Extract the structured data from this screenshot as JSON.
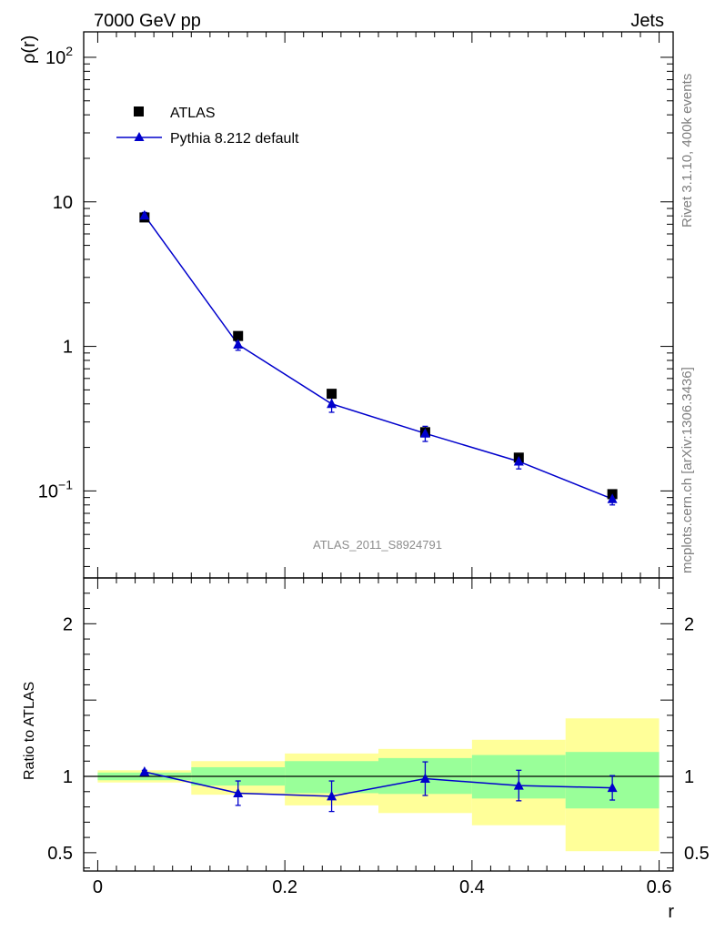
{
  "header": {
    "left_label": "7000 GeV pp",
    "right_label": "Jets",
    "side_label_top": "Rivet 3.1.10,  400k events",
    "side_label_bottom": "mcplots.cern.ch [arXiv:1306.3436]",
    "watermark": "ATLAS_2011_S8924791"
  },
  "legend": {
    "data_label": "ATLAS",
    "mc_label": "Pythia 8.212 default"
  },
  "colors": {
    "mc": "#0000cc",
    "data": "#000000",
    "band_outer": "#ffff99",
    "band_inner": "#99ff99"
  },
  "chart_data": [
    {
      "type": "scatter",
      "panel": "main",
      "ylabel": "ρ(r)",
      "yscale": "log",
      "ylim": [
        0.025,
        150
      ],
      "xlim": [
        -0.015,
        0.615
      ],
      "y_tick_labels": {
        "1e-1": "10",
        "1e-1_exp": "−1",
        "1": "1",
        "10": "10",
        "1e2": "10",
        "1e2_exp": "2"
      },
      "series": [
        {
          "name": "ATLAS",
          "x": [
            0.05,
            0.15,
            0.25,
            0.35,
            0.45,
            0.55
          ],
          "values": [
            7.8,
            1.18,
            0.47,
            0.255,
            0.17,
            0.095
          ],
          "marker": "square"
        },
        {
          "name": "Pythia 8.212 default",
          "x": [
            0.05,
            0.15,
            0.25,
            0.35,
            0.45,
            0.55
          ],
          "values": [
            8.05,
            1.03,
            0.4,
            0.25,
            0.16,
            0.088
          ],
          "err_low": [
            0.4,
            0.09,
            0.05,
            0.03,
            0.018,
            0.008
          ],
          "err_high": [
            0.4,
            0.09,
            0.05,
            0.03,
            0.018,
            0.008
          ],
          "marker": "triangle",
          "line": true
        }
      ]
    },
    {
      "type": "line",
      "panel": "ratio",
      "xlabel": "r",
      "ylabel": "Ratio to ATLAS",
      "xlim": [
        -0.015,
        0.615
      ],
      "ylim": [
        0.38,
        2.3
      ],
      "x_ticks": [
        0,
        0.2,
        0.4,
        0.6
      ],
      "x_tick_labels": [
        "0",
        "0.2",
        "0.4",
        "0.6"
      ],
      "y_ticks": [
        0.5,
        1,
        2
      ],
      "y_tick_labels": [
        "0.5",
        "1",
        "2"
      ],
      "bands": {
        "bins": [
          [
            0,
            0.1
          ],
          [
            0.1,
            0.2
          ],
          [
            0.2,
            0.3
          ],
          [
            0.3,
            0.4
          ],
          [
            0.4,
            0.5
          ],
          [
            0.5,
            0.6
          ]
        ],
        "outer_low": [
          0.96,
          0.88,
          0.81,
          0.76,
          0.68,
          0.51
        ],
        "outer_high": [
          1.04,
          1.1,
          1.15,
          1.18,
          1.24,
          1.38
        ],
        "inner_low": [
          0.975,
          0.94,
          0.89,
          0.885,
          0.855,
          0.79
        ],
        "inner_high": [
          1.025,
          1.06,
          1.1,
          1.12,
          1.14,
          1.16
        ]
      },
      "series": [
        {
          "name": "Pythia 8.212 default",
          "x": [
            0.05,
            0.15,
            0.25,
            0.35,
            0.45,
            0.55
          ],
          "values": [
            1.03,
            0.89,
            0.87,
            0.985,
            0.94,
            0.925
          ],
          "err_low": [
            0.01,
            0.08,
            0.1,
            0.11,
            0.1,
            0.08
          ],
          "err_high": [
            0.01,
            0.08,
            0.1,
            0.11,
            0.1,
            0.08
          ]
        }
      ]
    }
  ]
}
